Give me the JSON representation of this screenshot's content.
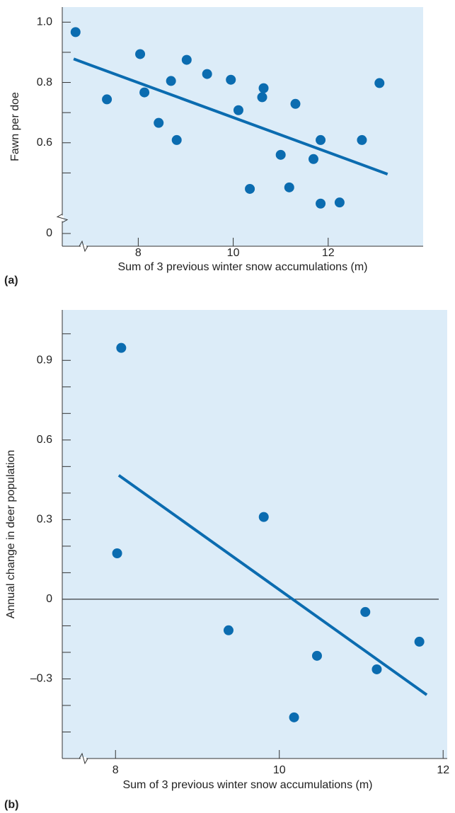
{
  "chart_data": [
    {
      "type": "scatter",
      "panel_label": "(a)",
      "x_label": "Sum of 3 previous winter snow accumulations (m)",
      "y_label": "Fawn per doe",
      "x": [
        6.68,
        7.34,
        8.04,
        8.13,
        8.43,
        8.69,
        8.81,
        9.02,
        9.45,
        9.95,
        10.11,
        10.35,
        10.61,
        10.64,
        11.0,
        11.18,
        11.31,
        11.69,
        11.84,
        11.84,
        12.24,
        12.71,
        13.08
      ],
      "values": [
        0.967,
        0.744,
        0.894,
        0.767,
        0.666,
        0.805,
        0.609,
        0.875,
        0.828,
        0.809,
        0.708,
        0.447,
        0.751,
        0.781,
        0.56,
        0.452,
        0.729,
        0.546,
        0.609,
        0.393,
        0.402,
        0.609,
        0.798
      ],
      "color": "#0b6cb0",
      "trend_line": {
        "x": [
          6.64,
          13.25
        ],
        "values": [
          0.878,
          0.496
        ]
      },
      "xlim": [
        6.4,
        14.0
      ],
      "ylim": [
        0,
        1.05
      ],
      "ybreak": [
        0,
        0.4
      ],
      "xbreak": true,
      "xticks": [
        8,
        10,
        12
      ],
      "yticks": [
        0,
        0.6,
        0.8,
        {
          "value": 1,
          "label": "1.0"
        }
      ],
      "yminorticks": [
        0.5,
        0.7,
        0.9
      ],
      "background": "#dcecf8"
    },
    {
      "type": "scatter",
      "panel_label": "(b)",
      "x_label": "Sum of 3 previous winter snow accumulations (m)",
      "y_label": "Annual change in deer population",
      "x": [
        8.07,
        8.02,
        9.38,
        9.81,
        10.46,
        10.18,
        11.05,
        11.19,
        11.71
      ],
      "values": [
        0.947,
        0.173,
        -0.117,
        0.31,
        -0.213,
        -0.445,
        -0.048,
        -0.264,
        -0.16
      ],
      "color": "#0b6cb0",
      "trend_line": {
        "x": [
          8.04,
          11.8
        ],
        "values": [
          0.467,
          -0.36
        ]
      },
      "xlim": [
        7.35,
        12.05
      ],
      "ylim": [
        -0.6,
        1.09
      ],
      "xbreak": true,
      "zero_line": true,
      "xticks": [
        8,
        10,
        12
      ],
      "yticks": [
        {
          "value": -0.3,
          "label": "–0.3"
        },
        0,
        0.3,
        0.6,
        0.9
      ],
      "yminorticks": [
        -0.5,
        -0.4,
        -0.2,
        -0.1,
        0.1,
        0.2,
        0.4,
        0.5,
        0.7,
        0.8,
        1.0
      ],
      "background": "#dcecf8"
    }
  ]
}
